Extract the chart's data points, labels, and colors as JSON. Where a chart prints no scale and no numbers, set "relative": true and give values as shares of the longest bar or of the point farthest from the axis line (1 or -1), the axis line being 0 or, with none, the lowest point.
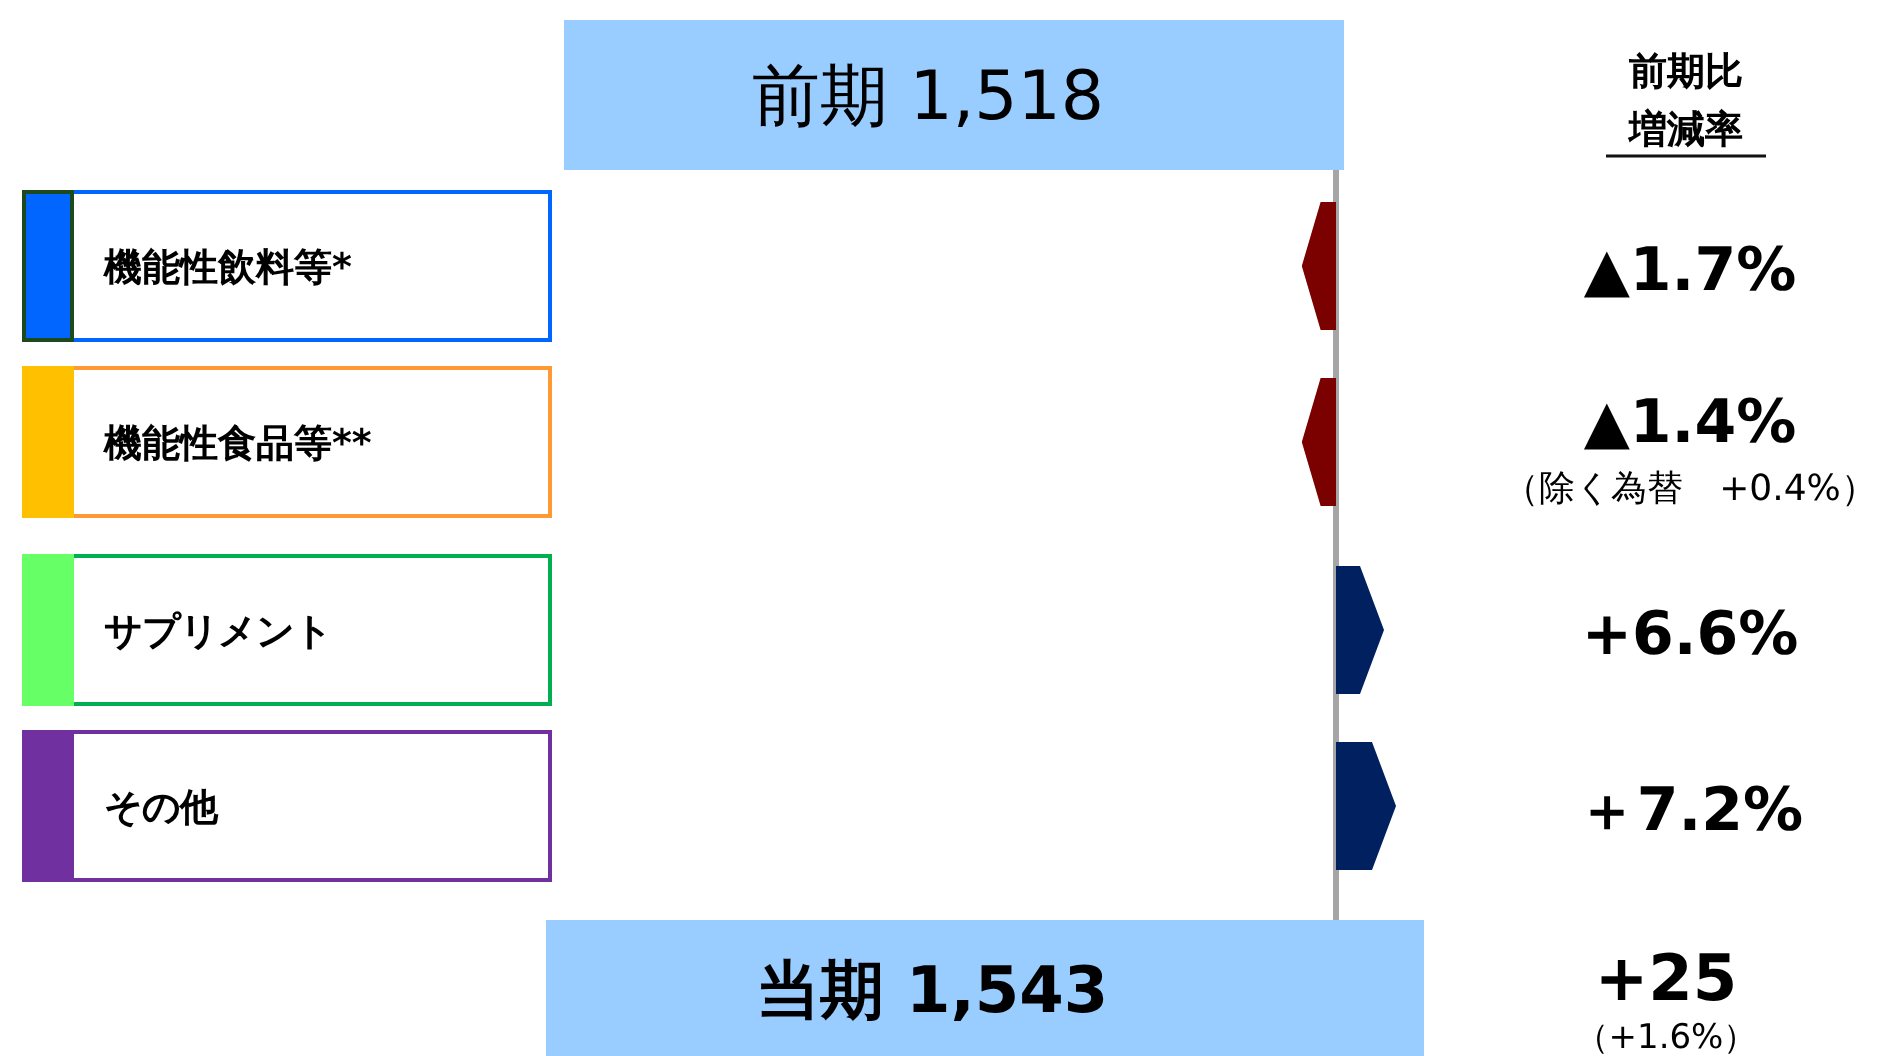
{
  "chart_data": {
    "type": "bar",
    "orientation": "horizontal",
    "relative": true,
    "categories": [
      "機能性飲料等*",
      "機能性食品等**",
      "サプリメント",
      "その他"
    ],
    "values": [
      -0.57,
      -0.57,
      0.8,
      1
    ],
    "colors": [
      "#7b0000",
      "#7b0000",
      "#002060",
      "#002060"
    ],
    "annotations": [
      "前期 1,518",
      "当期 1,543",
      "前期比",
      "増減率",
      "▲1.7%",
      "▲1.4%",
      "+6.6%",
      "＋7.2%",
      "（除く為替　+0.4%）",
      "+25",
      "（+1.6%）"
    ]
  }
}
